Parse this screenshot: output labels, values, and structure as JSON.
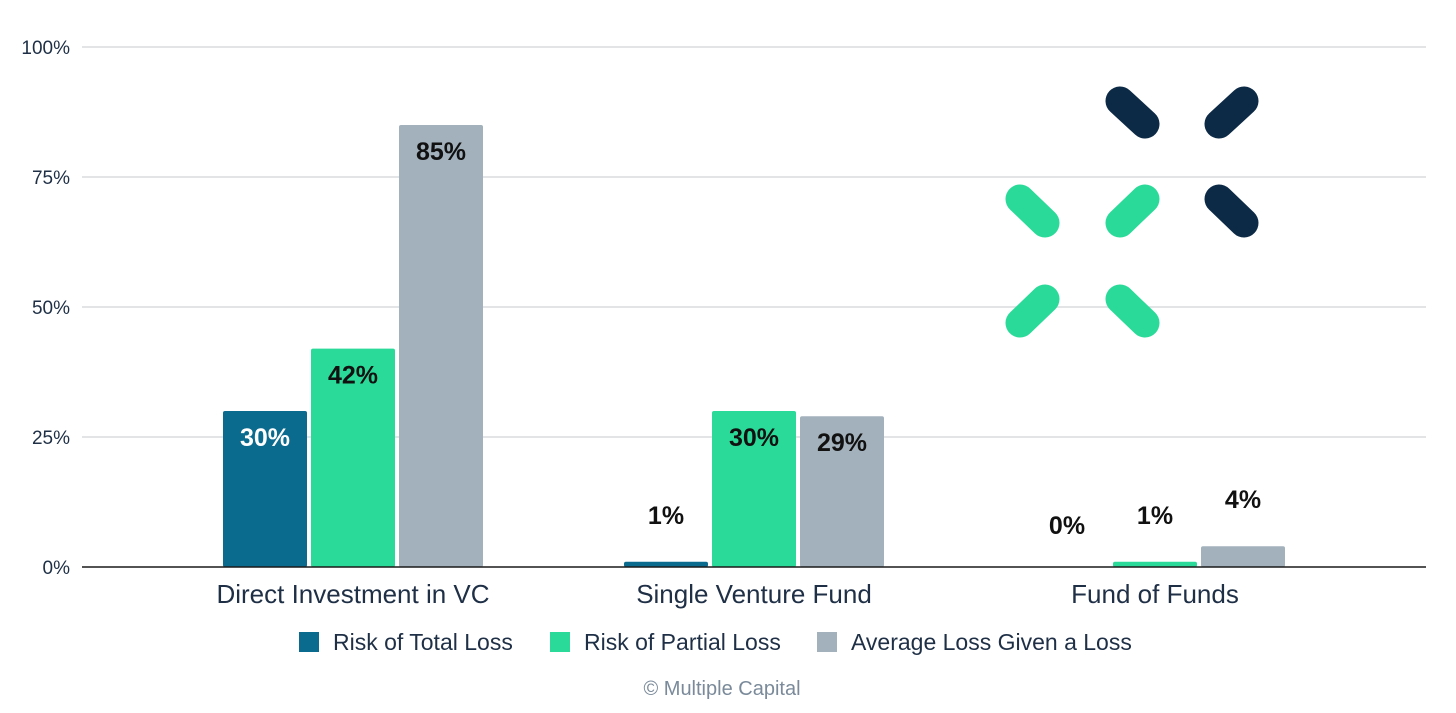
{
  "chart_data": {
    "type": "bar",
    "title": "",
    "xlabel": "",
    "ylabel": "",
    "ylim": [
      0,
      100
    ],
    "yticks": [
      0,
      25,
      50,
      75,
      100
    ],
    "ytick_suffix": "%",
    "grid": true,
    "legend_position": "bottom",
    "categories": [
      "Direct Investment in VC",
      "Single Venture Fund",
      "Fund of Funds"
    ],
    "series": [
      {
        "name": "Risk of Total Loss",
        "color": "#0b6b8f",
        "values": [
          30,
          1,
          0
        ],
        "labels": [
          "30%",
          "1%",
          "0%"
        ]
      },
      {
        "name": "Risk of Partial Loss",
        "color": "#2ada98",
        "values": [
          42,
          30,
          1
        ],
        "labels": [
          "42%",
          "30%",
          "1%"
        ]
      },
      {
        "name": "Average Loss Given a Loss",
        "color": "#a2b1bb",
        "values": [
          85,
          29,
          4
        ],
        "labels": [
          "85%",
          "29%",
          "4%"
        ]
      }
    ]
  },
  "footer": {
    "credit": "© Multiple Capital"
  },
  "logo": {
    "name": "multiple-capital-logo",
    "dark_color": "#0c2a45",
    "accent_color": "#2ada98"
  }
}
